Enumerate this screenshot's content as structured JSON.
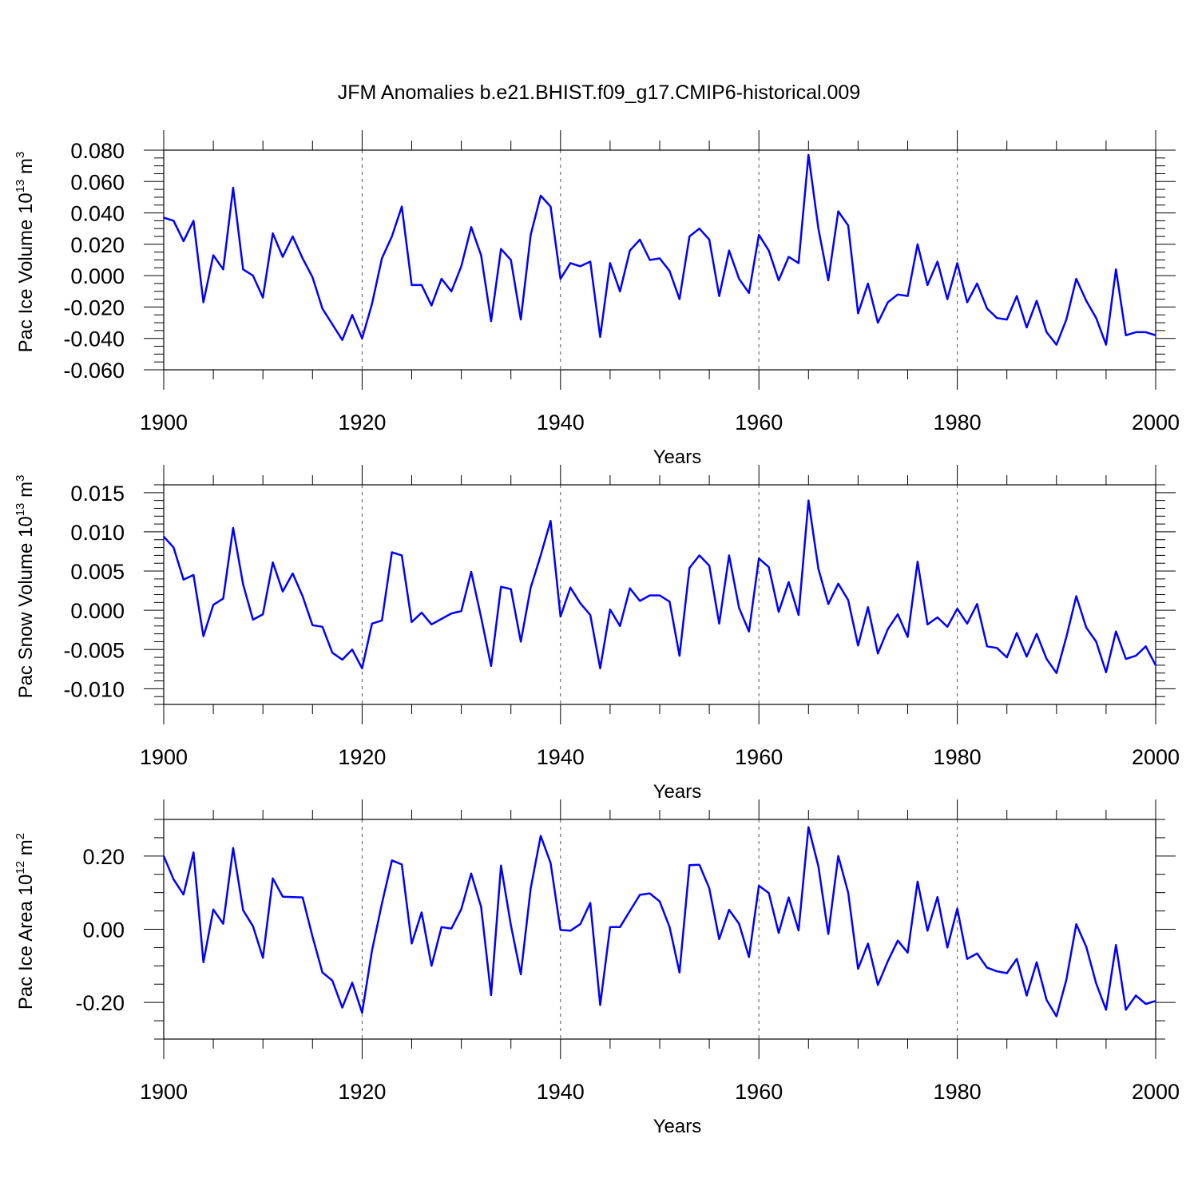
{
  "title": "JFM Anomalies b.e21.BHIST.f09_g17.CMIP6-historical.009",
  "colors": {
    "series": "#0000ff",
    "axis": "#000000",
    "grid": "#555555"
  },
  "chart_data": [
    {
      "type": "line",
      "ylabel": "Pac Ice Volume 10",
      "ylabel_exp": "13",
      "ylabel_unit": " m",
      "ylabel_unit_exp": "3",
      "xlabel": "Years",
      "xlim": [
        1900,
        2000
      ],
      "ylim": [
        -0.06,
        0.08
      ],
      "xticks": [
        1900,
        1920,
        1940,
        1960,
        1980,
        2000
      ],
      "xtick_labels": [
        "1900",
        "1920",
        "1940",
        "1960",
        "1980",
        "2000"
      ],
      "yticks": [
        -0.06,
        -0.04,
        -0.02,
        0.0,
        0.02,
        0.04,
        0.06,
        0.08
      ],
      "ytick_labels": [
        "-0.060",
        "-0.040",
        "-0.020",
        "0.000",
        "0.020",
        "0.040",
        "0.060",
        "0.080"
      ],
      "ytick_minor_step": 0.005,
      "grid_x": [
        1920,
        1940,
        1960,
        1980
      ],
      "x_start": 1900,
      "values": [
        0.037,
        0.035,
        0.022,
        0.035,
        -0.017,
        0.013,
        0.004,
        0.056,
        0.004,
        0.0,
        -0.014,
        0.027,
        0.012,
        0.025,
        0.011,
        -0.001,
        -0.021,
        -0.031,
        -0.041,
        -0.025,
        -0.04,
        -0.018,
        0.011,
        0.025,
        0.044,
        -0.006,
        -0.006,
        -0.019,
        -0.002,
        -0.01,
        0.006,
        0.031,
        0.013,
        -0.029,
        0.017,
        0.01,
        -0.028,
        0.026,
        0.051,
        0.044,
        -0.002,
        0.008,
        0.006,
        0.009,
        -0.039,
        0.008,
        -0.01,
        0.016,
        0.023,
        0.01,
        0.011,
        0.003,
        -0.015,
        0.025,
        0.03,
        0.023,
        -0.013,
        0.016,
        -0.002,
        -0.011,
        0.026,
        0.016,
        -0.003,
        0.012,
        0.008,
        0.077,
        0.03,
        -0.003,
        0.041,
        0.032,
        -0.024,
        -0.005,
        -0.03,
        -0.017,
        -0.012,
        -0.013,
        0.02,
        -0.006,
        0.009,
        -0.015,
        0.008,
        -0.017,
        -0.005,
        -0.021,
        -0.027,
        -0.028,
        -0.013,
        -0.033,
        -0.016,
        -0.036,
        -0.044,
        -0.028,
        -0.002,
        -0.016,
        -0.027,
        -0.044,
        0.004,
        -0.038,
        -0.036,
        -0.036,
        -0.038
      ]
    },
    {
      "type": "line",
      "ylabel": "Pac Snow Volume 10",
      "ylabel_exp": "13",
      "ylabel_unit": " m",
      "ylabel_unit_exp": "3",
      "xlabel": "Years",
      "xlim": [
        1900,
        2000
      ],
      "ylim": [
        -0.012,
        0.016
      ],
      "xticks": [
        1900,
        1920,
        1940,
        1960,
        1980,
        2000
      ],
      "xtick_labels": [
        "1900",
        "1920",
        "1940",
        "1960",
        "1980",
        "2000"
      ],
      "yticks": [
        -0.01,
        -0.005,
        0.0,
        0.005,
        0.01,
        0.015
      ],
      "ytick_labels": [
        "-0.010",
        "-0.005",
        "0.000",
        "0.005",
        "0.010",
        "0.015"
      ],
      "ytick_minor_step": 0.001,
      "grid_x": [
        1920,
        1940,
        1960,
        1980
      ],
      "x_start": 1900,
      "values": [
        0.0094,
        0.008,
        0.0039,
        0.0045,
        -0.0033,
        0.0007,
        0.0015,
        0.0105,
        0.0033,
        -0.0012,
        -0.0005,
        0.0061,
        0.0024,
        0.0047,
        0.0018,
        -0.0019,
        -0.0021,
        -0.0054,
        -0.0063,
        -0.005,
        -0.0074,
        -0.0017,
        -0.0013,
        0.0074,
        0.007,
        -0.0015,
        -0.0003,
        -0.0018,
        -0.0011,
        -0.0004,
        -0.0001,
        0.0049,
        -0.0009,
        -0.0071,
        0.003,
        0.0027,
        -0.004,
        0.0029,
        0.007,
        0.0114,
        -0.0008,
        0.0029,
        0.0009,
        -0.0006,
        -0.0074,
        0.0001,
        -0.002,
        0.0028,
        0.0012,
        0.0019,
        0.0019,
        0.0011,
        -0.0058,
        0.0054,
        0.007,
        0.0057,
        -0.0017,
        0.007,
        0.0003,
        -0.0027,
        0.0066,
        0.0055,
        -0.0002,
        0.0036,
        -0.0006,
        0.014,
        0.0053,
        0.0008,
        0.0034,
        0.0013,
        -0.0045,
        0.0004,
        -0.0055,
        -0.0024,
        -0.0005,
        -0.0034,
        0.0062,
        -0.0018,
        -0.0009,
        -0.0021,
        0.0002,
        -0.0017,
        0.0008,
        -0.0046,
        -0.0048,
        -0.006,
        -0.0029,
        -0.0059,
        -0.003,
        -0.0062,
        -0.008,
        -0.0034,
        0.0018,
        -0.0022,
        -0.004,
        -0.0079,
        -0.0027,
        -0.0062,
        -0.0058,
        -0.0046,
        -0.007
      ]
    },
    {
      "type": "line",
      "ylabel": "Pac Ice Area 10",
      "ylabel_exp": "12",
      "ylabel_unit": " m",
      "ylabel_unit_exp": "2",
      "xlabel": "Years",
      "xlim": [
        1900,
        2000
      ],
      "ylim": [
        -0.3,
        0.3
      ],
      "xticks": [
        1900,
        1920,
        1940,
        1960,
        1980,
        2000
      ],
      "xtick_labels": [
        "1900",
        "1920",
        "1940",
        "1960",
        "1980",
        "2000"
      ],
      "yticks": [
        -0.2,
        0.0,
        0.2
      ],
      "ytick_labels": [
        "-0.20",
        "0.00",
        "0.20"
      ],
      "ytick_minor_step": 0.05,
      "grid_x": [
        1920,
        1940,
        1960,
        1980
      ],
      "x_start": 1900,
      "values": [
        0.2,
        0.136,
        0.095,
        0.21,
        -0.09,
        0.054,
        0.015,
        0.222,
        0.052,
        0.008,
        -0.078,
        0.139,
        0.089,
        0.088,
        0.087,
        -0.02,
        -0.118,
        -0.14,
        -0.214,
        -0.146,
        -0.228,
        -0.058,
        0.07,
        0.188,
        0.177,
        -0.039,
        0.046,
        -0.1,
        0.006,
        0.002,
        0.055,
        0.152,
        0.061,
        -0.18,
        0.174,
        0.011,
        -0.123,
        0.112,
        0.255,
        0.181,
        -0.002,
        -0.004,
        0.014,
        0.072,
        -0.207,
        0.006,
        0.006,
        0.05,
        0.094,
        0.098,
        0.076,
        0.006,
        -0.118,
        0.175,
        0.176,
        0.112,
        -0.027,
        0.053,
        0.015,
        -0.076,
        0.119,
        0.099,
        -0.01,
        0.087,
        -0.003,
        0.279,
        0.172,
        -0.013,
        0.2,
        0.1,
        -0.108,
        -0.039,
        -0.152,
        -0.087,
        -0.031,
        -0.064,
        0.13,
        -0.004,
        0.088,
        -0.05,
        0.056,
        -0.081,
        -0.066,
        -0.105,
        -0.115,
        -0.12,
        -0.081,
        -0.181,
        -0.09,
        -0.193,
        -0.238,
        -0.138,
        0.014,
        -0.048,
        -0.148,
        -0.22,
        -0.043,
        -0.22,
        -0.181,
        -0.204,
        -0.196
      ]
    }
  ]
}
